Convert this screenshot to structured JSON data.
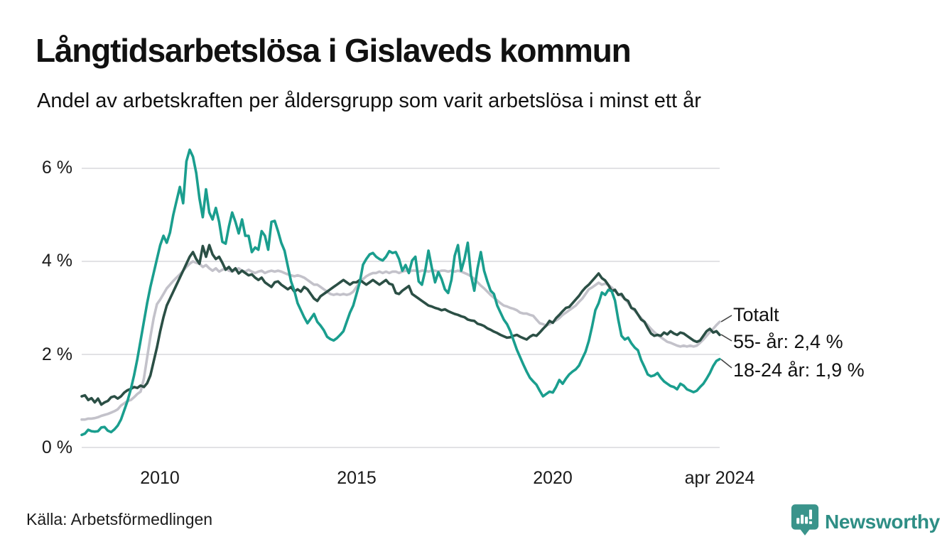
{
  "header": {
    "title": "Långtidsarbetslösa i Gislaveds kommun",
    "subtitle": "Andel av arbetskraften per åldersgrupp som varit arbetslösa i minst ett år"
  },
  "footer": {
    "source": "Källa: Arbetsförmedlingen",
    "logo_text": "Newsworthy",
    "logo_icon": "speech-bubble-bar-chart",
    "logo_color": "#3a948b",
    "logo_text_color": "#2e8e85"
  },
  "colors": {
    "background": "#ffffff",
    "gridline": "#e2e2e5",
    "text": "#1a1a1a",
    "connector": "#444444"
  },
  "chart_data": {
    "type": "line",
    "title": "Långtidsarbetslösa i Gislaveds kommun",
    "subtitle": "Andel av arbetskraften per åldersgrupp som varit arbetslösa i minst ett år",
    "unit": "%",
    "x_is_time": true,
    "x_start_year": 2008.0,
    "x_end_year": 2024.25,
    "x_step": "monthly",
    "xlim": [
      2008.0,
      2024.25
    ],
    "ylim": [
      0,
      6.6
    ],
    "grid": true,
    "legend_position": "end-of-line-labels-right",
    "yticks": [
      {
        "value": 0,
        "label": "0 %"
      },
      {
        "value": 2,
        "label": "2 %"
      },
      {
        "value": 4,
        "label": "4 %"
      },
      {
        "value": 6,
        "label": "6 %"
      }
    ],
    "xticks": [
      {
        "value": 2010.0,
        "label": "2010"
      },
      {
        "value": 2015.0,
        "label": "2015"
      },
      {
        "value": 2020.0,
        "label": "2020"
      },
      {
        "value": 2024.25,
        "label": "apr 2024"
      }
    ],
    "series": [
      {
        "name": "Totalt",
        "label": "Totalt",
        "color": "#c3c2ca",
        "end_value": 2.7,
        "values": [
          0.6,
          0.6,
          0.62,
          0.62,
          0.63,
          0.65,
          0.68,
          0.7,
          0.72,
          0.75,
          0.78,
          0.82,
          0.9,
          0.95,
          1.0,
          1.02,
          1.08,
          1.15,
          1.2,
          1.48,
          1.93,
          2.38,
          2.78,
          3.08,
          3.18,
          3.3,
          3.42,
          3.5,
          3.58,
          3.65,
          3.72,
          3.8,
          3.88,
          3.95,
          4.0,
          3.97,
          3.95,
          3.88,
          3.92,
          3.85,
          3.8,
          3.85,
          3.78,
          3.82,
          3.85,
          3.8,
          3.78,
          3.82,
          3.85,
          3.8,
          3.78,
          3.82,
          3.78,
          3.75,
          3.78,
          3.8,
          3.75,
          3.78,
          3.8,
          3.78,
          3.8,
          3.78,
          3.75,
          3.72,
          3.7,
          3.68,
          3.7,
          3.68,
          3.65,
          3.6,
          3.55,
          3.5,
          3.5,
          3.45,
          3.4,
          3.35,
          3.3,
          3.28,
          3.3,
          3.28,
          3.3,
          3.28,
          3.3,
          3.35,
          3.45,
          3.55,
          3.62,
          3.68,
          3.72,
          3.75,
          3.75,
          3.78,
          3.75,
          3.78,
          3.75,
          3.78,
          3.78,
          3.75,
          3.78,
          3.8,
          3.78,
          3.8,
          3.8,
          3.78,
          3.8,
          3.8,
          3.78,
          3.8,
          3.8,
          3.78,
          3.8,
          3.8,
          3.78,
          3.8,
          3.78,
          3.8,
          3.78,
          3.75,
          3.72,
          3.68,
          3.62,
          3.55,
          3.48,
          3.42,
          3.35,
          3.28,
          3.22,
          3.16,
          3.1,
          3.05,
          3.03,
          3.0,
          2.98,
          2.95,
          2.9,
          2.88,
          2.88,
          2.85,
          2.83,
          2.75,
          2.67,
          2.65,
          2.62,
          2.65,
          2.7,
          2.73,
          2.78,
          2.85,
          2.9,
          2.95,
          3.0,
          3.05,
          3.13,
          3.2,
          3.3,
          3.4,
          3.44,
          3.49,
          3.54,
          3.5,
          3.52,
          3.49,
          3.44,
          3.36,
          3.3,
          3.26,
          3.19,
          3.11,
          3.0,
          2.94,
          2.86,
          2.78,
          2.7,
          2.63,
          2.55,
          2.48,
          2.42,
          2.37,
          2.32,
          2.27,
          2.25,
          2.22,
          2.19,
          2.17,
          2.19,
          2.17,
          2.19,
          2.17,
          2.19,
          2.25,
          2.32,
          2.4,
          2.48,
          2.55,
          2.63,
          2.7
        ]
      },
      {
        "name": "55- år",
        "label": "55- år: 2,4 %",
        "color": "#2b4f45",
        "end_value": 2.4,
        "values": [
          1.1,
          1.12,
          1.02,
          1.06,
          0.97,
          1.05,
          0.92,
          0.97,
          1.0,
          1.08,
          1.1,
          1.05,
          1.1,
          1.18,
          1.23,
          1.26,
          1.3,
          1.28,
          1.33,
          1.3,
          1.38,
          1.55,
          1.85,
          2.15,
          2.5,
          2.8,
          3.05,
          3.2,
          3.35,
          3.5,
          3.65,
          3.8,
          3.95,
          4.1,
          4.2,
          4.05,
          3.95,
          4.33,
          4.1,
          4.35,
          4.15,
          4.05,
          4.1,
          3.97,
          3.82,
          3.88,
          3.79,
          3.85,
          3.74,
          3.8,
          3.75,
          3.7,
          3.72,
          3.65,
          3.6,
          3.65,
          3.55,
          3.5,
          3.45,
          3.55,
          3.57,
          3.5,
          3.45,
          3.4,
          3.45,
          3.35,
          3.4,
          3.35,
          3.45,
          3.4,
          3.3,
          3.2,
          3.15,
          3.25,
          3.3,
          3.35,
          3.4,
          3.45,
          3.5,
          3.55,
          3.6,
          3.55,
          3.5,
          3.55,
          3.55,
          3.6,
          3.55,
          3.5,
          3.55,
          3.6,
          3.55,
          3.5,
          3.55,
          3.6,
          3.52,
          3.5,
          3.32,
          3.3,
          3.37,
          3.42,
          3.47,
          3.3,
          3.25,
          3.2,
          3.15,
          3.1,
          3.05,
          3.03,
          3.0,
          2.98,
          2.95,
          2.97,
          2.93,
          2.9,
          2.87,
          2.85,
          2.82,
          2.8,
          2.75,
          2.73,
          2.72,
          2.66,
          2.64,
          2.61,
          2.56,
          2.53,
          2.49,
          2.46,
          2.42,
          2.39,
          2.36,
          2.37,
          2.4,
          2.42,
          2.38,
          2.35,
          2.32,
          2.38,
          2.42,
          2.4,
          2.47,
          2.55,
          2.62,
          2.72,
          2.68,
          2.78,
          2.85,
          2.93,
          3.0,
          3.02,
          3.1,
          3.18,
          3.26,
          3.36,
          3.44,
          3.5,
          3.58,
          3.66,
          3.74,
          3.64,
          3.59,
          3.49,
          3.36,
          3.39,
          3.28,
          3.3,
          3.19,
          3.15,
          3.0,
          2.97,
          2.86,
          2.75,
          2.7,
          2.57,
          2.45,
          2.4,
          2.42,
          2.4,
          2.47,
          2.43,
          2.5,
          2.45,
          2.42,
          2.47,
          2.45,
          2.4,
          2.35,
          2.3,
          2.27,
          2.3,
          2.4,
          2.5,
          2.55,
          2.47,
          2.5,
          2.42
        ]
      },
      {
        "name": "18-24 år",
        "label": "18-24 år: 1,9 %",
        "color": "#1a9e8e",
        "end_value": 1.9,
        "values": [
          0.27,
          0.3,
          0.38,
          0.35,
          0.34,
          0.35,
          0.43,
          0.44,
          0.36,
          0.33,
          0.39,
          0.47,
          0.6,
          0.8,
          1.0,
          1.25,
          1.55,
          1.9,
          2.3,
          2.7,
          3.1,
          3.45,
          3.75,
          4.05,
          4.35,
          4.55,
          4.4,
          4.62,
          5.0,
          5.3,
          5.6,
          5.25,
          6.15,
          6.4,
          6.25,
          5.9,
          5.35,
          4.95,
          5.55,
          5.05,
          4.9,
          5.15,
          4.85,
          4.42,
          4.38,
          4.75,
          5.05,
          4.85,
          4.6,
          4.9,
          4.55,
          4.55,
          4.2,
          4.3,
          4.25,
          4.65,
          4.55,
          4.25,
          4.85,
          4.87,
          4.65,
          4.4,
          4.23,
          3.9,
          3.57,
          3.37,
          3.1,
          2.95,
          2.8,
          2.67,
          2.77,
          2.87,
          2.7,
          2.62,
          2.52,
          2.38,
          2.33,
          2.3,
          2.35,
          2.42,
          2.5,
          2.7,
          2.9,
          3.05,
          3.3,
          3.55,
          3.93,
          4.05,
          4.15,
          4.18,
          4.1,
          4.05,
          4.02,
          4.1,
          4.22,
          4.18,
          4.2,
          4.05,
          3.8,
          3.92,
          3.75,
          4.02,
          4.1,
          3.57,
          3.5,
          3.8,
          4.23,
          3.87,
          3.55,
          3.77,
          3.62,
          3.4,
          3.32,
          3.6,
          4.12,
          4.35,
          3.8,
          4.05,
          4.4,
          3.7,
          3.37,
          3.85,
          4.2,
          3.8,
          3.57,
          3.37,
          3.3,
          3.05,
          2.9,
          2.75,
          2.65,
          2.5,
          2.3,
          2.1,
          1.94,
          1.78,
          1.63,
          1.5,
          1.42,
          1.35,
          1.22,
          1.1,
          1.15,
          1.2,
          1.18,
          1.3,
          1.45,
          1.37,
          1.48,
          1.57,
          1.63,
          1.68,
          1.76,
          1.91,
          2.06,
          2.29,
          2.6,
          2.95,
          3.1,
          3.33,
          3.28,
          3.39,
          3.36,
          3.16,
          2.75,
          2.4,
          2.32,
          2.36,
          2.24,
          2.15,
          2.09,
          1.88,
          1.73,
          1.57,
          1.53,
          1.55,
          1.6,
          1.5,
          1.42,
          1.37,
          1.32,
          1.3,
          1.25,
          1.37,
          1.33,
          1.25,
          1.22,
          1.19,
          1.22,
          1.3,
          1.37,
          1.48,
          1.6,
          1.75,
          1.86,
          1.9
        ]
      }
    ]
  }
}
